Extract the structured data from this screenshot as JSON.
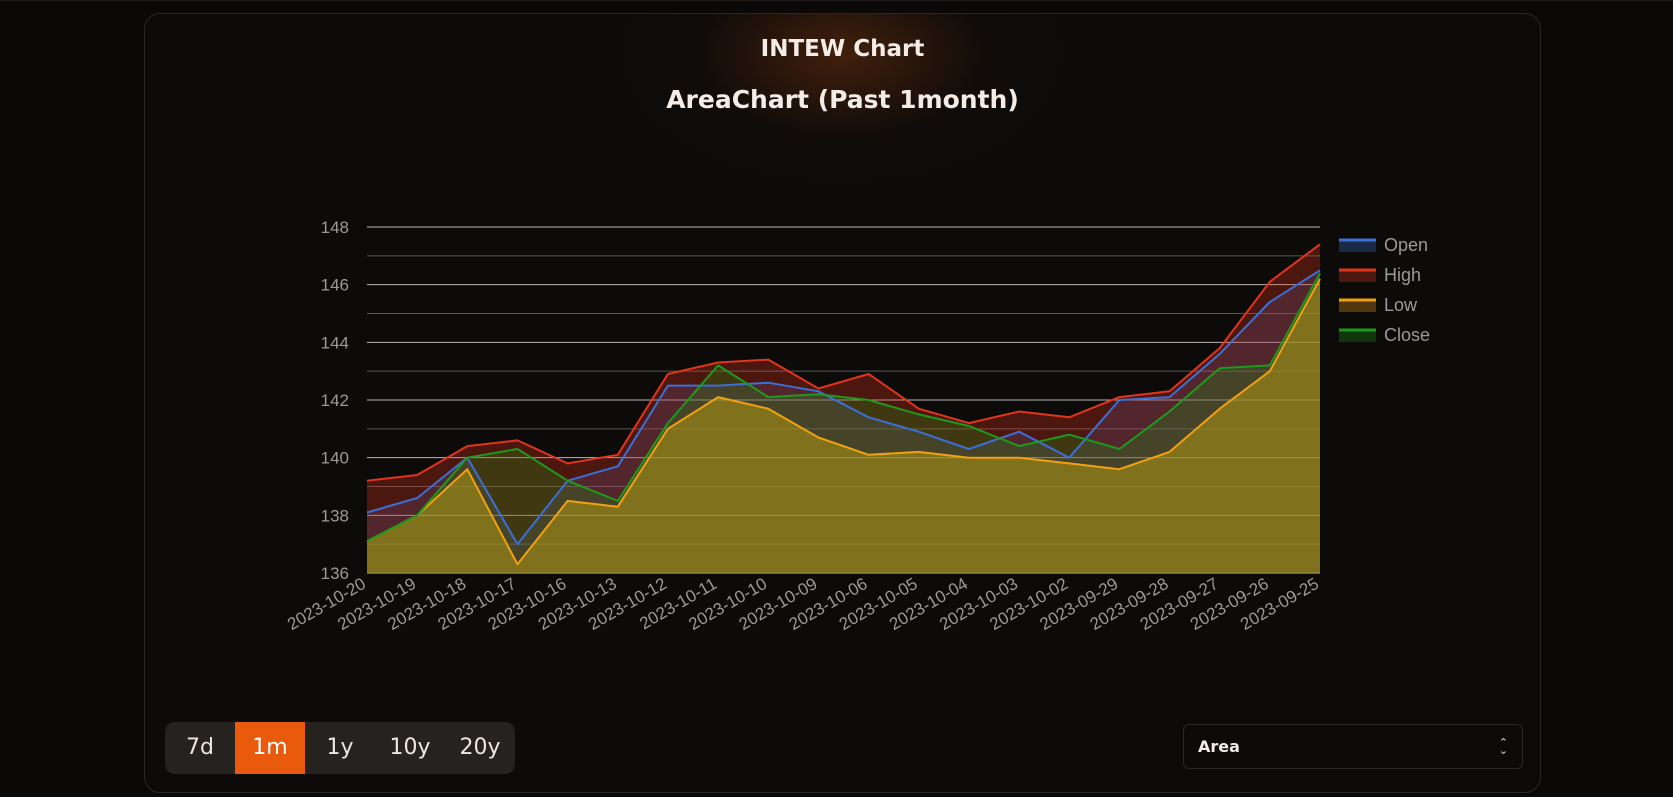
{
  "header": {
    "title": "INTEW Chart",
    "subtitle": "AreaChart (Past 1month)"
  },
  "range_buttons": [
    {
      "label": "7d",
      "active": false
    },
    {
      "label": "1m",
      "active": true
    },
    {
      "label": "1y",
      "active": false
    },
    {
      "label": "10y",
      "active": false
    },
    {
      "label": "20y",
      "active": false
    }
  ],
  "chart_type_select": {
    "value": "Area"
  },
  "icons": {
    "select_chevron": "chevron-up-down-icon"
  },
  "colors": {
    "accent": "#ea5a0c",
    "background": "#0a0908"
  },
  "chart_data": {
    "type": "area",
    "x": [
      "2023-10-20",
      "2023-10-19",
      "2023-10-18",
      "2023-10-17",
      "2023-10-16",
      "2023-10-13",
      "2023-10-12",
      "2023-10-11",
      "2023-10-10",
      "2023-10-09",
      "2023-10-06",
      "2023-10-05",
      "2023-10-04",
      "2023-10-03",
      "2023-10-02",
      "2023-09-29",
      "2023-09-28",
      "2023-09-27",
      "2023-09-26",
      "2023-09-25"
    ],
    "ylim": [
      136,
      148
    ],
    "yticks": [
      136,
      138,
      140,
      142,
      144,
      146,
      148
    ],
    "grid": true,
    "legend_position": "right",
    "series": [
      {
        "name": "Open",
        "color": "#3b6fd8",
        "values": [
          138.1,
          138.6,
          140.0,
          137.0,
          139.2,
          139.7,
          142.5,
          142.5,
          142.6,
          142.3,
          141.4,
          140.9,
          140.3,
          140.9,
          140.0,
          142.0,
          142.1,
          143.6,
          145.4,
          146.5
        ]
      },
      {
        "name": "High",
        "color": "#e0351c",
        "values": [
          139.2,
          139.4,
          140.4,
          140.6,
          139.8,
          140.1,
          142.9,
          143.3,
          143.4,
          142.4,
          142.9,
          141.7,
          141.2,
          141.6,
          141.4,
          142.1,
          142.3,
          143.8,
          146.1,
          147.4
        ]
      },
      {
        "name": "Low",
        "color": "#f2a00f",
        "values": [
          137.1,
          138.0,
          139.6,
          136.3,
          138.5,
          138.3,
          141.0,
          142.1,
          141.7,
          140.7,
          140.1,
          140.2,
          140.0,
          140.0,
          139.8,
          139.6,
          140.2,
          141.7,
          143.0,
          146.2
        ]
      },
      {
        "name": "Close",
        "color": "#1c9a1c",
        "values": [
          137.1,
          138.0,
          140.0,
          140.3,
          139.2,
          138.5,
          141.2,
          143.2,
          142.1,
          142.2,
          142.0,
          141.5,
          141.1,
          140.4,
          140.8,
          140.3,
          141.6,
          143.1,
          143.2,
          146.4
        ]
      }
    ]
  }
}
